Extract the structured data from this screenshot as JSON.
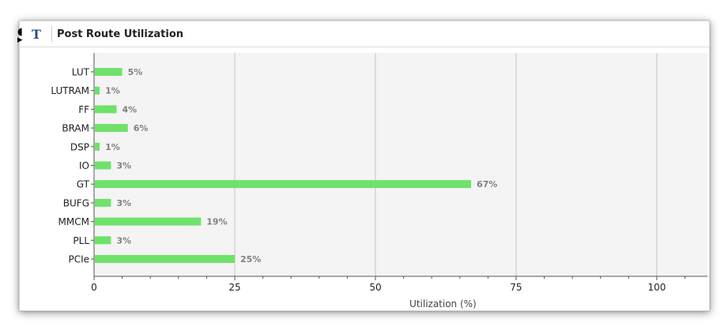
{
  "window": {
    "title": "Post Route Utilization",
    "title_icon": "T"
  },
  "chart_data": {
    "type": "bar",
    "orientation": "horizontal",
    "categories": [
      "LUT",
      "LUTRAM",
      "FF",
      "BRAM",
      "DSP",
      "IO",
      "GT",
      "BUFG",
      "MMCM",
      "PLL",
      "PCIe"
    ],
    "values": [
      5,
      1,
      4,
      6,
      1,
      3,
      67,
      3,
      19,
      3,
      25
    ],
    "value_labels": [
      "5%",
      "1%",
      "4%",
      "6%",
      "1%",
      "3%",
      "67%",
      "3%",
      "19%",
      "3%",
      "25%"
    ],
    "xlabel": "Utilization (%)",
    "xlim": [
      0,
      109
    ],
    "xticks": [
      0,
      25,
      50,
      75,
      100
    ],
    "grid": true,
    "colors": {
      "bar": "#6ee26a",
      "plot_bg": "#f4f4f4",
      "grid": "#c4c4c4",
      "value_label": "#808080"
    }
  }
}
